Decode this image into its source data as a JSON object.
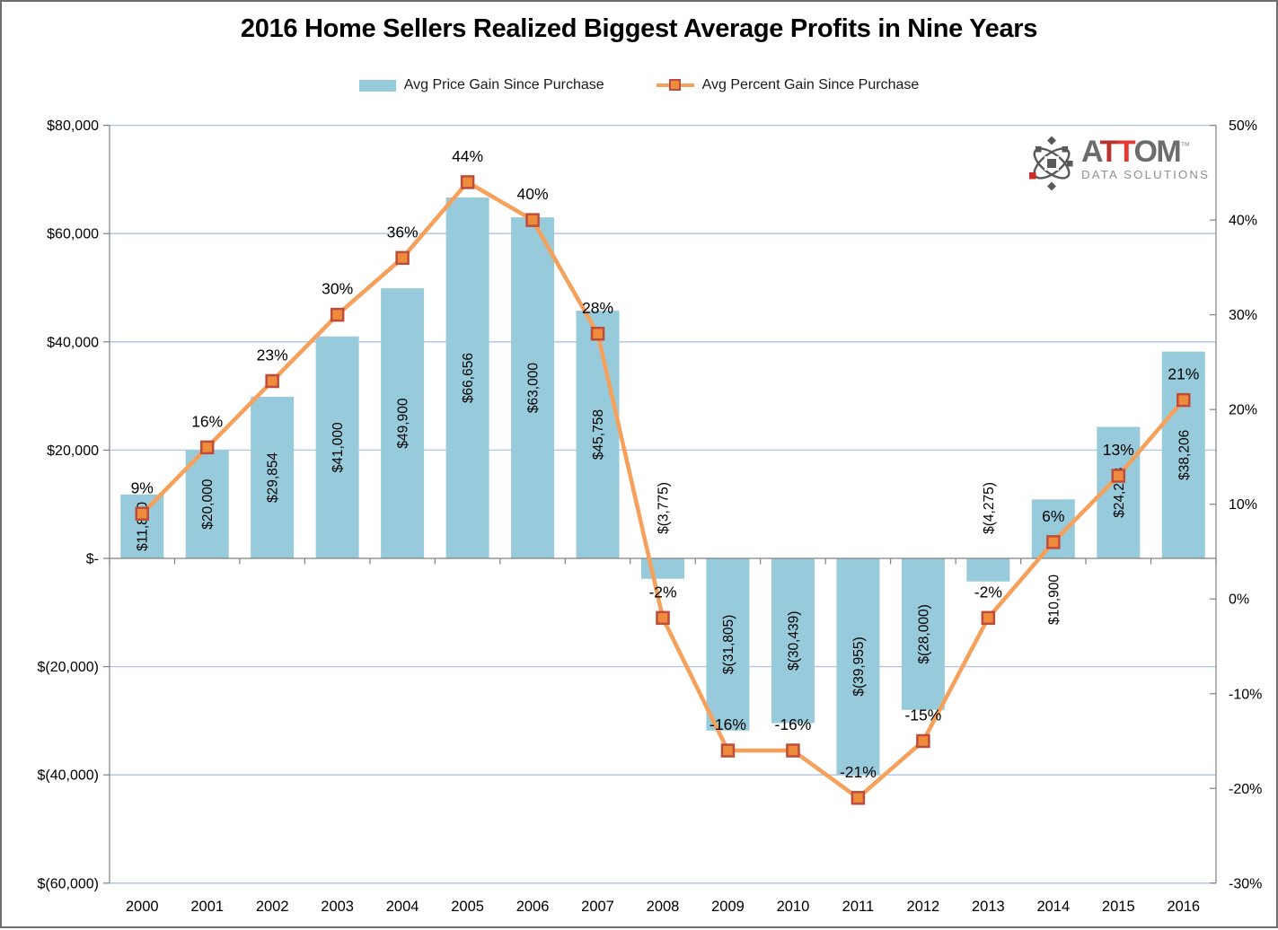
{
  "title": "2016 Home Sellers Realized Biggest Average Profits in Nine Years",
  "logo": {
    "letters": {
      "a": "A",
      "t1": "T",
      "t2": "T",
      "om": "OM"
    },
    "tm": "™",
    "subtitle": "DATA SOLUTIONS"
  },
  "chart_data": {
    "type": "combo-bar-line",
    "title": "2016 Home Sellers Realized Biggest Average Profits in Nine Years",
    "legend_position": "top",
    "grid": true,
    "categories": [
      "2000",
      "2001",
      "2002",
      "2003",
      "2004",
      "2005",
      "2006",
      "2007",
      "2008",
      "2009",
      "2010",
      "2011",
      "2012",
      "2013",
      "2014",
      "2015",
      "2016"
    ],
    "series": [
      {
        "name": "Avg Price Gain Since Purchase",
        "type": "bar",
        "axis": "left",
        "values": [
          11800,
          20000,
          29854,
          41000,
          49900,
          66656,
          63000,
          45758,
          -3775,
          -31805,
          -30439,
          -39955,
          -28000,
          -4275,
          10900,
          24288,
          38206
        ],
        "labels": [
          "$11,800",
          "$20,000",
          "$29,854",
          "$41,000",
          "$49,900",
          "$66,656",
          "$63,000",
          "$45,758",
          "$(3,775)",
          "$(31,805)",
          "$(30,439)",
          "$(39,955)",
          "$(28,000)",
          "$(4,275)",
          "$10,900",
          "$24,288",
          "$38,206"
        ],
        "label_inside": [
          true,
          true,
          true,
          true,
          true,
          true,
          true,
          true,
          false,
          true,
          true,
          true,
          true,
          false,
          false,
          true,
          true
        ]
      },
      {
        "name": "Avg Percent Gain Since Purchase",
        "type": "line",
        "axis": "right",
        "values": [
          9,
          16,
          23,
          30,
          36,
          44,
          40,
          28,
          -2,
          -16,
          -16,
          -21,
          -15,
          -2,
          6,
          13,
          21
        ],
        "labels": [
          "9%",
          "16%",
          "23%",
          "30%",
          "36%",
          "44%",
          "40%",
          "28%",
          "-2%",
          "-16%",
          "-16%",
          "-21%",
          "-15%",
          "-2%",
          "6%",
          "13%",
          "21%"
        ]
      }
    ],
    "left_axis": {
      "min": -60000,
      "max": 80000,
      "step": 20000,
      "tick_labels": [
        "$80,000",
        "$60,000",
        "$40,000",
        "$20,000",
        "$-",
        "$(20,000)",
        "$(40,000)",
        "$(60,000)"
      ]
    },
    "right_axis": {
      "min": -30,
      "max": 50,
      "step": 10,
      "tick_labels": [
        "50%",
        "40%",
        "30%",
        "20%",
        "10%",
        "0%",
        "-10%",
        "-20%",
        "-30%"
      ]
    },
    "colors": {
      "bar": "#97CBDB",
      "line": "#F5A15C",
      "marker_fill": "#EE8C3B",
      "marker_border": "#BE4C3C",
      "gridline": "#AEC3E2",
      "axis": "#808080",
      "text": "#000000",
      "logo_gray": "#6A6C6E",
      "logo_light_gray": "#8E9093",
      "logo_red1": "#B7332E",
      "logo_red2": "#E03A33"
    }
  }
}
